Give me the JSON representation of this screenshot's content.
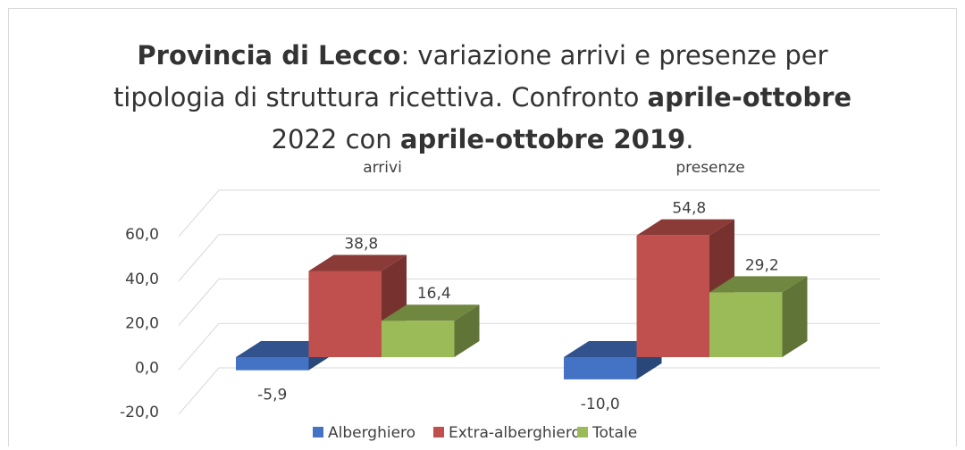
{
  "chart_data": {
    "type": "bar3d",
    "title": [
      [
        {
          "text": "Provincia di Lecco",
          "bold": true
        },
        {
          "text": ": variazione arrivi e presenze per",
          "bold": false
        }
      ],
      [
        {
          "text": "tipologia di struttura ricettiva. Confronto ",
          "bold": false
        },
        {
          "text": "aprile-ottobre",
          "bold": true
        }
      ],
      [
        {
          "text": "2022 con ",
          "bold": false
        },
        {
          "text": "aprile-ottobre 2019",
          "bold": true
        },
        {
          "text": ".",
          "bold": false
        }
      ]
    ],
    "categories": [
      "arrivi",
      "presenze"
    ],
    "series": [
      {
        "name": "Alberghiero",
        "color": "#4472c4",
        "values": [
          -5.9,
          -10.0
        ],
        "value_labels": [
          "-5,9",
          "-10,0"
        ]
      },
      {
        "name": "Extra-alberghiero",
        "color": "#c0504d",
        "values": [
          38.8,
          54.8
        ],
        "value_labels": [
          "38,8",
          "54,8"
        ]
      },
      {
        "name": "Totale",
        "color": "#9bbb59",
        "values": [
          16.4,
          29.2
        ],
        "value_labels": [
          "16,4",
          "29,2"
        ]
      }
    ],
    "ylim": [
      -20,
      60
    ],
    "yticks": [
      {
        "value": -20,
        "label": "-20,0"
      },
      {
        "value": 0,
        "label": "0,0"
      },
      {
        "value": 20,
        "label": "20,0"
      },
      {
        "value": 40,
        "label": "40,0"
      },
      {
        "value": 60,
        "label": "60,0"
      }
    ],
    "grid": true,
    "legend": "bottom"
  }
}
